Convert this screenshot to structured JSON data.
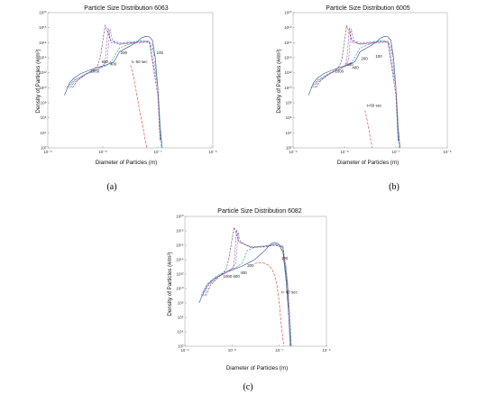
{
  "chart_data": [
    {
      "panel_label": "(a)",
      "type": "line",
      "title": "Particle Size Distribution 6063",
      "xlabel": "Diameter of Particles (m)",
      "ylabel": "Density of Particles (#/m³)",
      "xscale": "log",
      "yscale": "log",
      "xlim": [
        1e-09,
        1e-06
      ],
      "ylim": [
        100.0,
        1e+20
      ],
      "x_ticks": [
        "10⁻⁹",
        "10⁻⁸",
        "10⁻⁷",
        "10⁻⁶"
      ],
      "y_ticks": [
        "10²",
        "10⁴",
        "10⁶",
        "10⁸",
        "10¹⁰",
        "10¹²",
        "10¹⁴",
        "10¹⁶",
        "10¹⁸",
        "10²⁰"
      ],
      "grid": false,
      "series": [
        {
          "name": "t= 60 sec",
          "color": "#e8332d",
          "dash": "3,1.5",
          "x": [
            3.2e-08,
            3.6e-08,
            4e-08,
            4.5e-08,
            5e-08,
            5.5e-08,
            6e-08,
            6.3e-08
          ],
          "y": [
            10000000000000.0,
            400000000000.0,
            6000000000.0,
            40000000.0,
            800000.0,
            20000.0,
            600.0,
            100.0
          ]
        },
        {
          "name": "100",
          "color": "#2c4b86",
          "dash": "",
          "x": [
            2e-09,
            2.5e-09,
            3e-09,
            4e-09,
            6e-09,
            8e-09,
            1.2e-08,
            1.6e-08,
            2e-08,
            2.5e-08,
            3e-08,
            4e-08,
            5e-08,
            6e-08,
            7e-08,
            8e-08,
            9e-08,
            1e-07,
            1.1e-07,
            1.2e-07
          ],
          "y": [
            1000000000.0,
            50000000000.0,
            200000000000.0,
            800000000000.0,
            2500000000000.0,
            5000000000000.0,
            12000000000000.0,
            30000000000000.0,
            600000000000000.0,
            1500000000000000.0,
            3000000000000000.0,
            1e+16,
            4e+16,
            7e+16,
            6e+16,
            2e+16,
            100000000000000.0,
            10000000000.0,
            100000.0,
            100.0
          ]
        },
        {
          "name": "200",
          "color": "#2aa39a",
          "dash": "2.5,1.2",
          "x": [
            2.2e-09,
            3e-09,
            5e-09,
            8e-09,
            1.2e-08,
            1.5e-08,
            1.8e-08,
            2e-08,
            3e-08,
            5e-08,
            7e-08,
            9e-08,
            1.05e-07,
            1.15e-07
          ],
          "y": [
            10000000000.0,
            100000000000.0,
            800000000000.0,
            3000000000000.0,
            10000000000000.0,
            50000000000000.0,
            600000000000000.0,
            2000000000000000.0,
            6000000000000000.0,
            2e+16,
            1.5e+16,
            100000000000000.0,
            100000000.0,
            100.0
          ]
        },
        {
          "name": "400",
          "color": "#7a7fd0",
          "dash": "2.5,1.2",
          "x": [
            2.4e-09,
            3e-09,
            5e-09,
            8e-09,
            1e-08,
            1.2e-08,
            1.35e-08,
            1.5e-08,
            2e-08,
            4e-08,
            6e-08,
            8e-08,
            1e-07,
            1.12e-07
          ],
          "y": [
            10000000000.0,
            80000000000.0,
            700000000000.0,
            3000000000000.0,
            8000000000000.0,
            40000000000000.0,
            8e+17,
            2e+16,
            9000000000000000.0,
            1.5e+16,
            1.8e+16,
            5000000000000000.0,
            10000000000.0,
            1000.0
          ]
        },
        {
          "name": "600",
          "color": "#c247b8",
          "dash": "2.5,1.2",
          "x": [
            2.6e-09,
            3e-09,
            5e-09,
            8e-09,
            1e-08,
            1.1e-08,
            1.25e-08,
            1.4e-08,
            2e-08,
            4e-08,
            7e-08,
            1e-07,
            1.1e-07
          ],
          "y": [
            10000000000.0,
            50000000000.0,
            600000000000.0,
            3000000000000.0,
            7000000000000.0,
            30000000000000.0,
            1e+18,
            1e+16,
            7000000000000000.0,
            1.2e+16,
            1.5e+16,
            10000000000.0,
            1000.0
          ]
        },
        {
          "name": "1000",
          "color": "#555555",
          "dash": "2.5,1.2",
          "x": [
            2.8e-09,
            3.5e-09,
            5e-09,
            7e-09,
            8e-09,
            9e-09,
            1.1e-08,
            1.4e-08,
            2e-08,
            4e-08,
            7e-08,
            1e-07,
            1.1e-07
          ],
          "y": [
            10000000000.0,
            100000000000.0,
            700000000000.0,
            3000000000000.0,
            8000000000000.0,
            100000000000000.0,
            2e+18,
            2e+16,
            6000000000000000.0,
            1e+16,
            1.2e+16,
            1000000000.0,
            1000.0
          ]
        }
      ],
      "annotations": [
        {
          "text": "t= 60 sec",
          "x": 3.3e-08,
          "y": 20000000000000.0
        },
        {
          "text": "100",
          "x": 9.5e-08,
          "y": 300000000000000.0
        },
        {
          "text": "200",
          "x": 2.1e-08,
          "y": 300000000000000.0
        },
        {
          "text": "400",
          "x": 1.35e-08,
          "y": 10000000000000.0
        },
        {
          "text": "600",
          "x": 9.5e-09,
          "y": 20000000000000.0
        },
        {
          "text": "1000",
          "x": 6e-09,
          "y": 1000000000000.0
        }
      ]
    },
    {
      "panel_label": "(b)",
      "type": "line",
      "title": "Particle Size Distribution 6005",
      "xlabel": "Diameter of Particles (m)",
      "ylabel": "Density of Particles (#/m³)",
      "xscale": "log",
      "yscale": "log",
      "xlim": [
        1e-09,
        1e-06
      ],
      "ylim": [
        100.0,
        1e+20
      ],
      "x_ticks": [
        "10⁻⁹",
        "10⁻⁸",
        "10⁻⁷",
        "10⁻⁶"
      ],
      "y_ticks": [
        "10²",
        "10⁴",
        "10⁶",
        "10⁸",
        "10¹⁰",
        "10¹²",
        "10¹⁴",
        "10¹⁶",
        "10¹⁸",
        "10²⁰"
      ],
      "grid": false,
      "series": [
        {
          "name": "t=60 sec",
          "color": "#e8332d",
          "dash": "3,1.5",
          "x": [
            2.5e-08,
            2.8e-08,
            3e-08,
            3.2e-08,
            3.4e-08,
            3.5e-08
          ],
          "y": [
            10000000.0,
            300000.0,
            20000.0,
            1500.0,
            200.0,
            100.0
          ]
        },
        {
          "name": "100",
          "color": "#2c4b86",
          "dash": "",
          "x": [
            2e-09,
            2.5e-09,
            3e-09,
            4e-09,
            6e-09,
            8e-09,
            1.2e-08,
            1.6e-08,
            2e-08,
            2.5e-08,
            3e-08,
            4e-08,
            5e-08,
            6e-08,
            7e-08,
            8e-08,
            9e-08,
            1e-07,
            1.1e-07,
            1.2e-07
          ],
          "y": [
            1000000000.0,
            50000000000.0,
            200000000000.0,
            800000000000.0,
            2500000000000.0,
            5000000000000.0,
            12000000000000.0,
            30000000000000.0,
            600000000000000.0,
            1500000000000000.0,
            3000000000000000.0,
            1e+16,
            4e+16,
            7e+16,
            6e+16,
            2e+16,
            100000000000000.0,
            10000000000.0,
            100000.0,
            100.0
          ]
        },
        {
          "name": "200",
          "color": "#2aa39a",
          "dash": "2.5,1.2",
          "x": [
            2.2e-09,
            3e-09,
            5e-09,
            8e-09,
            1.2e-08,
            1.5e-08,
            1.8e-08,
            2e-08,
            3e-08,
            5e-08,
            7e-08,
            9e-08,
            1.05e-07,
            1.15e-07
          ],
          "y": [
            10000000000.0,
            100000000000.0,
            800000000000.0,
            3000000000000.0,
            10000000000000.0,
            50000000000000.0,
            600000000000000.0,
            2000000000000000.0,
            6000000000000000.0,
            2e+16,
            1.5e+16,
            100000000000000.0,
            100000000.0,
            100.0
          ]
        },
        {
          "name": "400",
          "color": "#7a7fd0",
          "dash": "2.5,1.2",
          "x": [
            2.4e-09,
            3e-09,
            5e-09,
            8e-09,
            1e-08,
            1.2e-08,
            1.35e-08,
            1.5e-08,
            2e-08,
            4e-08,
            6e-08,
            8e-08,
            1e-07,
            1.12e-07
          ],
          "y": [
            10000000000.0,
            80000000000.0,
            700000000000.0,
            3000000000000.0,
            8000000000000.0,
            40000000000000.0,
            8e+17,
            2e+16,
            9000000000000000.0,
            1.5e+16,
            1.8e+16,
            5000000000000000.0,
            10000000000.0,
            1000.0
          ]
        },
        {
          "name": "600",
          "color": "#c247b8",
          "dash": "2.5,1.2",
          "x": [
            2.6e-09,
            3e-09,
            5e-09,
            8e-09,
            1e-08,
            1.1e-08,
            1.25e-08,
            1.4e-08,
            2e-08,
            4e-08,
            7e-08,
            1e-07,
            1.1e-07
          ],
          "y": [
            10000000000.0,
            50000000000.0,
            600000000000.0,
            3000000000000.0,
            7000000000000.0,
            30000000000000.0,
            1e+18,
            1e+16,
            7000000000000000.0,
            1.2e+16,
            1.5e+16,
            10000000000.0,
            1000.0
          ]
        },
        {
          "name": "1000",
          "color": "#555555",
          "dash": "2.5,1.2",
          "x": [
            2.8e-09,
            3.5e-09,
            5e-09,
            7e-09,
            8e-09,
            9e-09,
            1.1e-08,
            1.4e-08,
            2e-08,
            4e-08,
            7e-08,
            1e-07,
            1.1e-07
          ],
          "y": [
            10000000000.0,
            100000000000.0,
            700000000000.0,
            3000000000000.0,
            8000000000000.0,
            100000000000000.0,
            2e+18,
            2e+16,
            6000000000000000.0,
            1e+16,
            1.2e+16,
            1000000000.0,
            1000.0
          ]
        }
      ],
      "annotations": [
        {
          "text": "t=60 sec",
          "x": 2.7e-08,
          "y": 30000000.0
        },
        {
          "text": "100",
          "x": 4e-08,
          "y": 100000000000000.0
        },
        {
          "text": "200",
          "x": 2.1e-08,
          "y": 50000000000000.0
        },
        {
          "text": "400",
          "x": 1.4e-08,
          "y": 3000000000000.0
        },
        {
          "text": "600",
          "x": 1.1e-08,
          "y": 8000000000000.0
        },
        {
          "text": "1000",
          "x": 6.5e-09,
          "y": 1000000000000.0
        }
      ]
    },
    {
      "panel_label": "(c)",
      "type": "line",
      "title": "Particle Size Distribution 6082",
      "xlabel": "Diameter of Particles (m)",
      "ylabel": "Density of Particles (#/m³)",
      "xscale": "log",
      "yscale": "log",
      "xlim": [
        1e-09,
        1e-06
      ],
      "ylim": [
        100.0,
        1e+20
      ],
      "x_ticks": [
        "10⁻⁹",
        "10⁻⁸",
        "10⁻⁷",
        "10⁻⁶"
      ],
      "y_ticks": [
        "10²",
        "10⁴",
        "10⁶",
        "10⁸",
        "10¹⁰",
        "10¹²",
        "10¹⁴",
        "10¹⁶",
        "10¹⁸",
        "10²⁰"
      ],
      "grid": false,
      "series": [
        {
          "name": "t= 60 sec",
          "color": "#e8332d",
          "dash": "3,1.5",
          "x": [
            3e-08,
            4e-08,
            5e-08,
            6e-08,
            7e-08,
            8e-08,
            9e-08,
            1e-07,
            1.1e-07,
            1.25e-07
          ],
          "y": [
            30000000000000.0,
            40000000000000.0,
            30000000000000.0,
            15000000000000.0,
            5000000000000.0,
            600000000000.0,
            20000000000.0,
            100000000.0,
            100000.0,
            100.0
          ]
        },
        {
          "name": "100",
          "color": "#2c4b86",
          "dash": "",
          "x": [
            2e-09,
            2.5e-09,
            3e-09,
            4e-09,
            6e-09,
            8e-09,
            1.2e-08,
            1.6e-08,
            2e-08,
            3e-08,
            4e-08,
            5e-08,
            6e-08,
            7e-08,
            8e-08,
            9e-08,
            1e-07,
            1.2e-07,
            1.4e-07,
            1.6e-07,
            1.8e-07
          ],
          "y": [
            100000000.0,
            3000000000.0,
            30000000000.0,
            200000000000.0,
            800000000000.0,
            2000000000000.0,
            6000000000000.0,
            12000000000000.0,
            25000000000000.0,
            100000000000000.0,
            500000000000000.0,
            2000000000000000.0,
            8000000000000000.0,
            2e+16,
            2.5e+16,
            2e+16,
            1e+16,
            1000000000000000.0,
            100000000000.0,
            1000000.0,
            100.0
          ]
        },
        {
          "name": "200",
          "color": "#2aa39a",
          "dash": "2.5,1.2",
          "x": [
            2.2e-09,
            3e-09,
            5e-09,
            8e-09,
            1.2e-08,
            1.6e-08,
            1.9e-08,
            2.1e-08,
            3e-08,
            5e-08,
            8e-08,
            1.1e-07,
            1.4e-07,
            1.7e-07,
            1.8e-07
          ],
          "y": [
            1000000000.0,
            50000000000.0,
            700000000000.0,
            3000000000000.0,
            8000000000000.0,
            30000000000000.0,
            300000000000000.0,
            2000000000000000.0,
            5000000000000000.0,
            8000000000000000.0,
            1.5e+16,
            1e+16,
            10000000000000.0,
            1000000.0,
            100.0
          ]
        },
        {
          "name": "400",
          "color": "#7a7fd0",
          "dash": "2.5,1.2",
          "x": [
            2.4e-09,
            3e-09,
            5e-09,
            8e-09,
            1e-08,
            1.2e-08,
            1.35e-08,
            1.5e-08,
            2.5e-08,
            5e-08,
            8e-08,
            1.2e-07,
            1.5e-07,
            1.75e-07
          ],
          "y": [
            1000000000.0,
            30000000000.0,
            500000000000.0,
            2500000000000.0,
            6000000000000.0,
            30000000000000.0,
            6e+17,
            3e+16,
            6000000000000000.0,
            8000000000000000.0,
            1.5e+16,
            8000000000000000.0,
            100000000000.0,
            100.0
          ]
        },
        {
          "name": "600",
          "color": "#c247b8",
          "dash": "2.5,1.2",
          "x": [
            2.6e-09,
            3.2e-09,
            5e-09,
            8e-09,
            1e-08,
            1.1e-08,
            1.25e-08,
            1.4e-08,
            2.5e-08,
            5e-08,
            8e-08,
            1.2e-07,
            1.5e-07,
            1.7e-07
          ],
          "y": [
            1000000000.0,
            30000000000.0,
            400000000000.0,
            2000000000000.0,
            5000000000000.0,
            20000000000000.0,
            1.5e+18,
            3e+16,
            5000000000000000.0,
            7000000000000000.0,
            1.2e+16,
            6000000000000000.0,
            10000000000.0,
            100.0
          ]
        },
        {
          "name": "1000",
          "color": "#555555",
          "dash": "2.5,1.2",
          "x": [
            2.8e-09,
            3.5e-09,
            5e-09,
            6.5e-09,
            7.5e-09,
            8.5e-09,
            1.1e-08,
            1.4e-08,
            2.5e-08,
            5e-08,
            8e-08,
            1.2e-07,
            1.5e-07,
            1.7e-07
          ],
          "y": [
            1000000000.0,
            30000000000.0,
            300000000000.0,
            1500000000000.0,
            5000000000000.0,
            100000000000000.0,
            3e+18,
            3e+16,
            5000000000000000.0,
            6000000000000000.0,
            1e+16,
            5000000000000000.0,
            10000000000.0,
            100.0
          ]
        }
      ],
      "annotations": [
        {
          "text": "t= 60 sec",
          "x": 1.1e-07,
          "y": 2000000000.0
        },
        {
          "text": "100",
          "x": 1.1e-07,
          "y": 100000000000000.0
        },
        {
          "text": "200",
          "x": 2.1e-08,
          "y": 10000000000000.0
        },
        {
          "text": "400",
          "x": 1.5e-08,
          "y": 1000000000000.0
        },
        {
          "text": "600",
          "x": 1.05e-08,
          "y": 300000000000.0
        },
        {
          "text": "1000",
          "x": 6.5e-09,
          "y": 300000000000.0
        }
      ]
    }
  ]
}
